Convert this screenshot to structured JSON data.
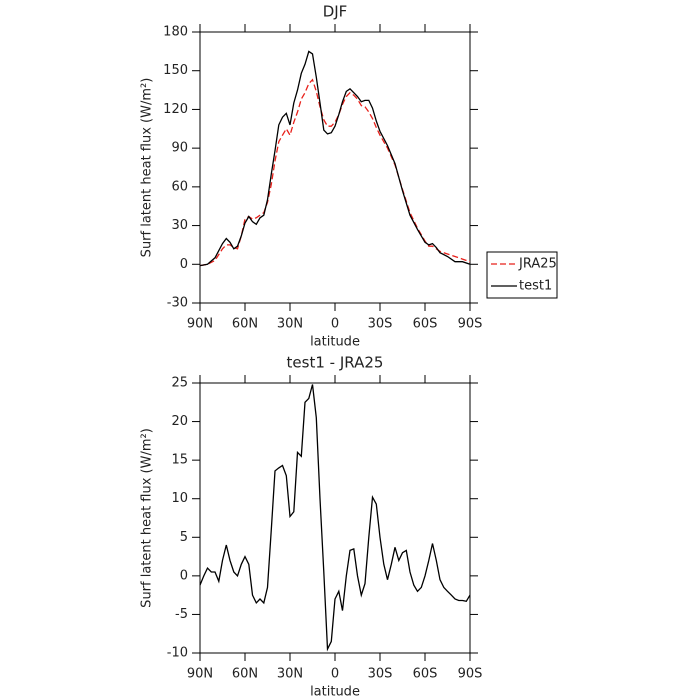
{
  "chart_data": [
    {
      "type": "line",
      "title": "DJF",
      "xlabel": "latitude",
      "ylabel": "Surf latent heat flux (W/m²)",
      "x": [
        90,
        85,
        80,
        75,
        72.5,
        70,
        67.5,
        65,
        62.5,
        60,
        57.5,
        55,
        52.5,
        50,
        47.5,
        45,
        42.5,
        40,
        37.5,
        35,
        32.5,
        30,
        27.5,
        25,
        22.5,
        20,
        17.5,
        15,
        12.5,
        10,
        7.5,
        5,
        2.5,
        0,
        -2.5,
        -5,
        -7.5,
        -10,
        -12.5,
        -15,
        -17.5,
        -20,
        -22.5,
        -25,
        -27.5,
        -30,
        -35,
        -40,
        -45,
        -50,
        -55,
        -60,
        -62.5,
        -65,
        -67.5,
        -70,
        -75,
        -80,
        -85,
        -90
      ],
      "series": [
        {
          "name": "JRA25",
          "color": "#e8201a",
          "style": "dashed",
          "values": [
            -1,
            0,
            3,
            12,
            15,
            15,
            13,
            12,
            22,
            35,
            37,
            35,
            36,
            38,
            40,
            48,
            62,
            80,
            95,
            100,
            105,
            100,
            110,
            118,
            128,
            133,
            140,
            143,
            134,
            122,
            112,
            107,
            107,
            110,
            116,
            124,
            130,
            133,
            131,
            128,
            123,
            122,
            118,
            113,
            106,
            100,
            90,
            77,
            58,
            40,
            28,
            18,
            14,
            14,
            12,
            10,
            8,
            6,
            4,
            2
          ]
        },
        {
          "name": "test1",
          "color": "#000000",
          "style": "solid",
          "values": [
            -1,
            0,
            5,
            16,
            20,
            17,
            12,
            14,
            22,
            32,
            37,
            33,
            31,
            36,
            38,
            50,
            70,
            88,
            108,
            114,
            117,
            108,
            125,
            135,
            148,
            155,
            165,
            163,
            145,
            125,
            104,
            101,
            102,
            107,
            116,
            126,
            134,
            136,
            133,
            130,
            126,
            127,
            127,
            121,
            111,
            103,
            92,
            78,
            57,
            38,
            27,
            17,
            15,
            16,
            13,
            9,
            6,
            2,
            2,
            0
          ]
        }
      ],
      "xlim": [
        90,
        -90
      ],
      "xticks": [
        {
          "value": 90,
          "label": "90N"
        },
        {
          "value": 60,
          "label": "60N"
        },
        {
          "value": 30,
          "label": "30N"
        },
        0,
        {
          "value": -30,
          "label": "30S"
        },
        {
          "value": -60,
          "label": "60S"
        },
        {
          "value": -90,
          "label": "90S"
        }
      ],
      "ylim": [
        -30,
        180
      ],
      "yticks": [
        -30,
        0,
        30,
        60,
        90,
        120,
        150,
        180
      ],
      "legend": "outside-right"
    },
    {
      "type": "line",
      "title": "test1 - JRA25",
      "xlabel": "latitude",
      "ylabel": "Surf latent heat flux (W/m²)",
      "x": [
        90,
        87.5,
        85,
        82.5,
        80,
        77.5,
        75,
        72.5,
        70,
        67.5,
        65,
        62.5,
        60,
        57.5,
        55,
        52.5,
        50,
        47.5,
        45,
        42.5,
        40,
        37.5,
        35,
        32.5,
        30,
        27.5,
        25,
        22.5,
        20,
        17.5,
        15,
        12.5,
        10,
        7.5,
        5,
        2.5,
        0,
        -2.5,
        -5,
        -7.5,
        -10,
        -12.5,
        -15,
        -17.5,
        -20,
        -22.5,
        -25,
        -27.5,
        -30,
        -32.5,
        -35,
        -37.5,
        -40,
        -42.5,
        -45,
        -47.5,
        -50,
        -52.5,
        -55,
        -57.5,
        -60,
        -62.5,
        -65,
        -67.5,
        -70,
        -72.5,
        -75,
        -77.5,
        -80,
        -82.5,
        -85,
        -87.5,
        -90
      ],
      "values": [
        -1.2,
        0,
        1,
        0.5,
        0.5,
        -0.7,
        2,
        4,
        2,
        0.5,
        0,
        1.5,
        2.5,
        1.5,
        -2.5,
        -3.5,
        -3,
        -3.5,
        -1.5,
        6,
        13.6,
        14,
        14.3,
        13,
        7.7,
        8.3,
        16,
        15.5,
        22.5,
        23,
        24.8,
        20.5,
        10,
        0.5,
        -9.5,
        -8.5,
        -3,
        -2,
        -4.5,
        0,
        3.3,
        3.5,
        0,
        -2.5,
        -1,
        5,
        10.2,
        9.3,
        5,
        1.5,
        -0.5,
        1.5,
        3.7,
        2,
        3,
        3.3,
        0.5,
        -1.2,
        -2,
        -1.5,
        0,
        2,
        4.2,
        2,
        -0.5,
        -1.5,
        -2,
        -2.5,
        -3,
        -3.2,
        -3.2,
        -3.3,
        -2.5
      ],
      "color": "#000000",
      "xlim": [
        90,
        -90
      ],
      "xticks": [
        {
          "value": 90,
          "label": "90N"
        },
        {
          "value": 60,
          "label": "60N"
        },
        {
          "value": 30,
          "label": "30N"
        },
        0,
        {
          "value": -30,
          "label": "30S"
        },
        {
          "value": -60,
          "label": "60S"
        },
        {
          "value": -90,
          "label": "90S"
        }
      ],
      "ylim": [
        -10,
        25
      ],
      "yticks": [
        -10,
        -5,
        0,
        5,
        10,
        15,
        20,
        25
      ]
    }
  ]
}
